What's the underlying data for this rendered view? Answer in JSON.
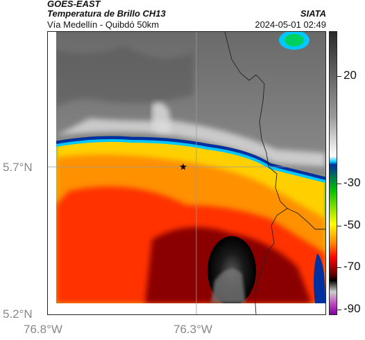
{
  "header": {
    "satellite": "GOES-EAST",
    "product": "Temperatura de Brillo CH13",
    "region": "Vía Medellín - Quibdó 50km",
    "agency": "SIATA",
    "datetime": "2024-05-01 02:49"
  },
  "map": {
    "lat_labels": [
      "5.7°N",
      "5.2°N"
    ],
    "lon_labels": [
      "76.8°W",
      "76.3°W"
    ],
    "marker": "star-icon"
  },
  "colorbar": {
    "tick_labels": [
      "20",
      "-30",
      "-50",
      "-70",
      "-90"
    ],
    "colors": [
      "#2a2a2a",
      "#ffffff",
      "#00c8ff",
      "#00c000",
      "#ffff00",
      "#ff0000",
      "#000000",
      "#c050c0"
    ]
  }
}
